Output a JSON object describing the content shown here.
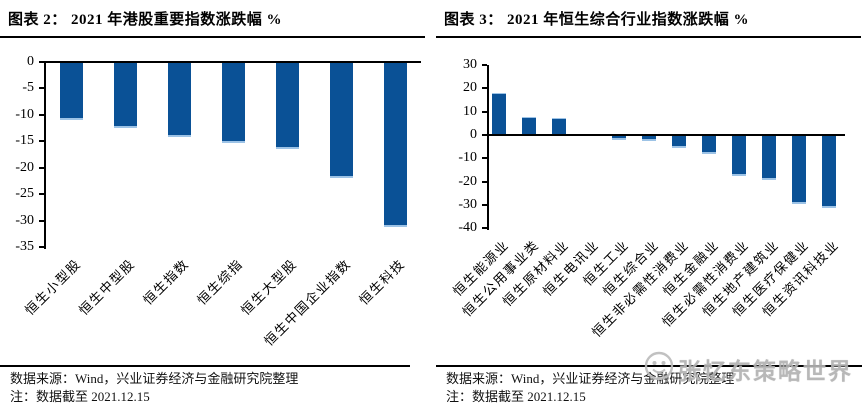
{
  "panels": [
    {
      "title": "图表 2： 2021 年港股重要指数涨跌幅 %",
      "source_line": "数据来源：Wind，兴业证券经济与金融研究院整理",
      "note_line": "注：数据截至 2021.12.15"
    },
    {
      "title": "图表 3： 2021 年恒生综合行业指数涨跌幅 %",
      "source_line": "数据来源：Wind，兴业证券经济与金融研究院整理",
      "note_line": "注：数据截至 2021.12.15",
      "watermark_text": "张忆东策略世界"
    }
  ],
  "colors": {
    "bar_blue": "#0A5196",
    "bar_edge_light_blue": "#9DC3E6",
    "axis_black": "#000000",
    "watermark_gray": "#B3B3B3"
  },
  "chart_data": [
    {
      "type": "bar",
      "title": "2021 年港股重要指数涨跌幅 %",
      "categories": [
        "恒生小型股",
        "恒生中型股",
        "恒生指数",
        "恒生综指",
        "恒生大型股",
        "恒生中国企业指数",
        "恒生科技"
      ],
      "values": [
        -10.9,
        -12.5,
        -14.2,
        -15.4,
        -16.5,
        -22.0,
        -31.2
      ],
      "xlabel": "",
      "ylabel": "",
      "ylim": [
        -35,
        0
      ],
      "yticks": [
        0,
        -5,
        -10,
        -15,
        -20,
        -25,
        -30,
        -35
      ],
      "bar_color": "#0A5196",
      "grid": false,
      "legend_position": "none"
    },
    {
      "type": "bar",
      "title": "2021 年恒生综合行业指数涨跌幅 %",
      "categories": [
        "恒生能源业",
        "恒生公用事业类",
        "恒生原材料业",
        "恒生电讯业",
        "恒生工业",
        "恒生综合业",
        "恒生非必需性消费业",
        "恒生金融业",
        "恒生必需性消费业",
        "恒生地产建筑业",
        "恒生医疗保健业",
        "恒生资讯科技业"
      ],
      "values": [
        18.0,
        7.8,
        7.4,
        0.4,
        -2.1,
        -2.4,
        -5.5,
        -8.0,
        -17.6,
        -19.4,
        -29.6,
        -31.4
      ],
      "xlabel": "",
      "ylabel": "",
      "ylim": [
        -40,
        30
      ],
      "yticks": [
        30,
        20,
        10,
        0,
        -10,
        -20,
        -30,
        -40
      ],
      "bar_color": "#0A5196",
      "grid": false,
      "legend_position": "none"
    }
  ]
}
